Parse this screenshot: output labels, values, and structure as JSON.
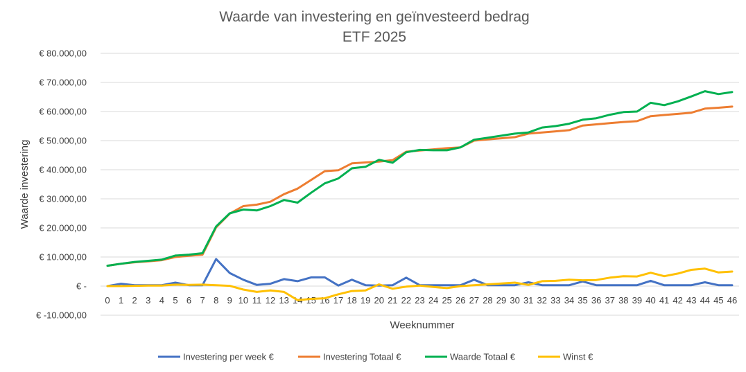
{
  "chart_data": {
    "type": "line",
    "title": "Waarde van investering en geïnvesteerd bedrag",
    "subtitle": "ETF 2025",
    "xlabel": "Weeknummer",
    "ylabel": "Waarde investering",
    "ylim": [
      -10000,
      80000
    ],
    "ytick_values": [
      80000,
      70000,
      60000,
      50000,
      40000,
      30000,
      20000,
      10000,
      0,
      -10000
    ],
    "ytick_labels": [
      "€ 80.000,00",
      "€ 70.000,00",
      "€ 60.000,00",
      "€ 50.000,00",
      "€ 40.000,00",
      "€ 30.000,00",
      "€ 20.000,00",
      "€ 10.000,00",
      "€ -",
      "€ -10.000,00"
    ],
    "x": [
      "0",
      "1",
      "2",
      "3",
      "4",
      "5",
      "6",
      "7",
      "8",
      "9",
      "10",
      "11",
      "12",
      "13",
      "14",
      "15",
      "16",
      "17",
      "18",
      "19",
      "20",
      "21",
      "22",
      "23",
      "24",
      "25",
      "26",
      "27",
      "28",
      "29",
      "30",
      "31",
      "32",
      "33",
      "34",
      "35",
      "36",
      "37",
      "38",
      "39",
      "40",
      "41",
      "42",
      "43",
      "44",
      "45",
      "46"
    ],
    "grid": true,
    "legend_position": "bottom",
    "series": [
      {
        "name": "Investering per week €",
        "color": "#4472C4",
        "values": [
          0,
          800,
          300,
          300,
          300,
          1200,
          300,
          300,
          9300,
          4500,
          2200,
          400,
          800,
          2400,
          1700,
          3000,
          3000,
          200,
          2200,
          300,
          200,
          300,
          2900,
          300,
          300,
          300,
          300,
          2200,
          300,
          300,
          300,
          1300,
          300,
          300,
          300,
          1600,
          300,
          300,
          300,
          300,
          1800,
          300,
          300,
          300,
          1300,
          300,
          300
        ]
      },
      {
        "name": "Investering Totaal €",
        "color": "#ED7D31",
        "values": [
          7000,
          7700,
          8200,
          8500,
          8900,
          10000,
          10400,
          10800,
          20200,
          24900,
          27500,
          28000,
          29000,
          31600,
          33500,
          36500,
          39500,
          39800,
          42200,
          42500,
          42800,
          43300,
          46200,
          46600,
          47000,
          47400,
          47700,
          50000,
          50400,
          50800,
          51200,
          52400,
          52800,
          53200,
          53600,
          55200,
          55600,
          56000,
          56400,
          56700,
          58400,
          58800,
          59200,
          59600,
          61000,
          61300,
          61700
        ]
      },
      {
        "name": "Waarde Totaal €",
        "color": "#00B050",
        "values": [
          7000,
          7700,
          8300,
          8700,
          9100,
          10500,
          10800,
          11300,
          20500,
          25000,
          26300,
          26000,
          27500,
          29600,
          28700,
          32100,
          35300,
          37000,
          40500,
          41000,
          43400,
          42400,
          46000,
          46800,
          46700,
          46700,
          47700,
          50300,
          51000,
          51700,
          52400,
          52800,
          54500,
          55000,
          55800,
          57200,
          57700,
          58900,
          59800,
          60000,
          63000,
          62200,
          63500,
          65200,
          67000,
          66000,
          66700
        ]
      },
      {
        "name": "Winst €",
        "color": "#FFC000",
        "values": [
          0,
          0,
          100,
          200,
          200,
          500,
          400,
          500,
          300,
          100,
          -1200,
          -2000,
          -1500,
          -2000,
          -4800,
          -4400,
          -4200,
          -2800,
          -1700,
          -1500,
          600,
          -900,
          -200,
          200,
          -300,
          -700,
          0,
          300,
          600,
          900,
          1200,
          400,
          1700,
          1800,
          2200,
          2000,
          2100,
          2900,
          3400,
          3300,
          4600,
          3400,
          4300,
          5600,
          6000,
          4700,
          5000
        ]
      }
    ]
  }
}
